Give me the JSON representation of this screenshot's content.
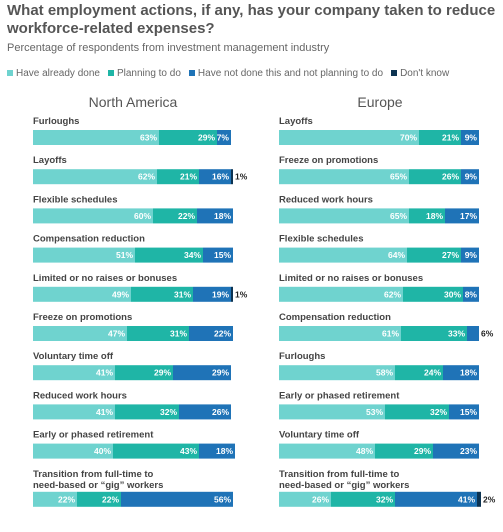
{
  "title": "What employment actions, if any, has your company taken to reduce workforce-related expenses?",
  "subtitle": "Percentage of respondents from investment management industry",
  "legend": [
    {
      "label": "Have already done",
      "color": "#6fd3cf"
    },
    {
      "label": "Planning to do",
      "color": "#1fb5a6"
    },
    {
      "label": "Have not done this and not planning to do",
      "color": "#1f73b7"
    },
    {
      "label": "Don't know",
      "color": "#0c3351"
    }
  ],
  "colors": [
    "#6fd3cf",
    "#1fb5a6",
    "#1f73b7",
    "#0c3351"
  ],
  "chart_data": [
    {
      "type": "bar",
      "stacked": true,
      "orientation": "horizontal",
      "title": "North America",
      "categories": [
        "Furloughs",
        "Layoffs",
        "Flexible schedules",
        "Compensation reduction",
        "Limited or no raises or bonuses",
        "Freeze on promotions",
        "Voluntary time off",
        "Reduced work hours",
        "Early or phased retirement",
        "Transition from full-time to need-based or “gig” workers"
      ],
      "series": [
        {
          "name": "Have already done",
          "values": [
            63,
            62,
            60,
            51,
            49,
            47,
            41,
            41,
            40,
            22
          ]
        },
        {
          "name": "Planning to do",
          "values": [
            29,
            21,
            22,
            34,
            31,
            31,
            29,
            32,
            43,
            22
          ]
        },
        {
          "name": "Have not done this and not planning to do",
          "values": [
            7,
            16,
            18,
            15,
            19,
            22,
            29,
            26,
            18,
            56
          ]
        },
        {
          "name": "Don't know",
          "values": [
            0,
            1,
            0,
            0,
            1,
            0,
            0,
            0,
            0,
            0
          ]
        }
      ],
      "xlim": [
        0,
        100
      ]
    },
    {
      "type": "bar",
      "stacked": true,
      "orientation": "horizontal",
      "title": "Europe",
      "categories": [
        "Layoffs",
        "Freeze on promotions",
        "Reduced work hours",
        "Flexible schedules",
        "Limited or no raises or bonuses",
        "Compensation reduction",
        "Furloughs",
        "Early or phased retirement",
        "Voluntary time off",
        "Transition from full-time to need-based or “gig” workers"
      ],
      "series": [
        {
          "name": "Have already done",
          "values": [
            70,
            65,
            65,
            64,
            62,
            61,
            58,
            53,
            48,
            26
          ]
        },
        {
          "name": "Planning to do",
          "values": [
            21,
            26,
            18,
            27,
            30,
            33,
            24,
            32,
            29,
            32
          ]
        },
        {
          "name": "Have not done this and not planning to do",
          "values": [
            9,
            9,
            17,
            9,
            8,
            6,
            18,
            15,
            23,
            41
          ]
        },
        {
          "name": "Don't know",
          "values": [
            0,
            0,
            0,
            0,
            0,
            0,
            0,
            0,
            0,
            2
          ]
        }
      ],
      "xlim": [
        0,
        100
      ]
    }
  ]
}
